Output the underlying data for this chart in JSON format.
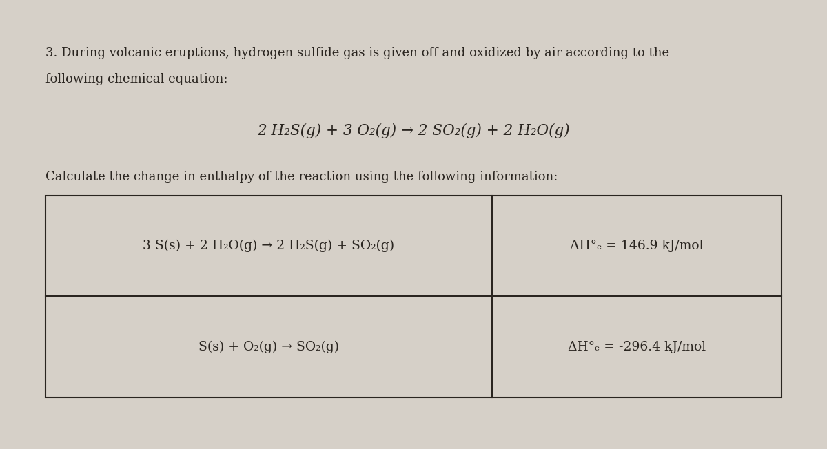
{
  "background_color": "#d6d0c8",
  "intro_text_line1": "3. During volcanic eruptions, hydrogen sulfide gas is given off and oxidized by air according to the",
  "intro_text_line2": "following chemical equation:",
  "main_equation": "2 H₂S(g) + 3 O₂(g) → 2 SO₂(g) + 2 H₂O(g)",
  "calc_text": "Calculate the change in enthalpy of the reaction using the following information:",
  "row1_reaction": "3 S(s) + 2 H₂O(g) → 2 H₂S(g) + SO₂(g)",
  "row1_enthalpy": "ΔH°ₑ = 146.9 kJ/mol",
  "row2_reaction": "S(s) + O₂(g) → SO₂(g)",
  "row2_enthalpy": "ΔH°ₑ = -296.4 kJ/mol",
  "font_size_intro": 13.0,
  "font_size_equation": 15.5,
  "font_size_table": 13.5,
  "text_color": "#2a2520"
}
